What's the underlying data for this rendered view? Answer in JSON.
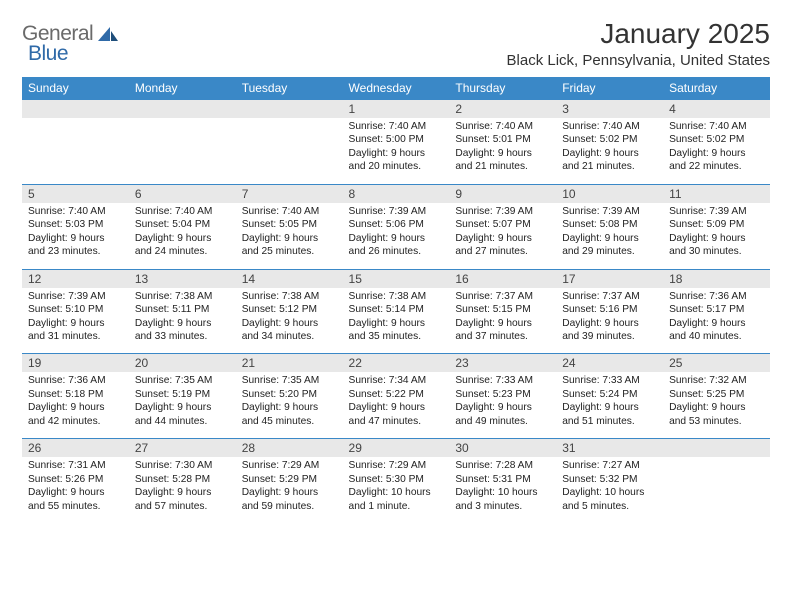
{
  "brand": {
    "name1": "General",
    "name2": "Blue"
  },
  "header": {
    "month_title": "January 2025",
    "location": "Black Lick, Pennsylvania, United States"
  },
  "colors": {
    "header_bg": "#3a88c7",
    "header_text": "#ffffff",
    "daynum_bg": "#e8e8e8",
    "border": "#3a88c7",
    "logo_gray": "#6a6a6a",
    "logo_blue": "#2f6aa8"
  },
  "weekdays": [
    "Sunday",
    "Monday",
    "Tuesday",
    "Wednesday",
    "Thursday",
    "Friday",
    "Saturday"
  ],
  "weeks": [
    [
      null,
      null,
      null,
      {
        "n": "1",
        "sunrise": "Sunrise: 7:40 AM",
        "sunset": "Sunset: 5:00 PM",
        "day1": "Daylight: 9 hours",
        "day2": "and 20 minutes."
      },
      {
        "n": "2",
        "sunrise": "Sunrise: 7:40 AM",
        "sunset": "Sunset: 5:01 PM",
        "day1": "Daylight: 9 hours",
        "day2": "and 21 minutes."
      },
      {
        "n": "3",
        "sunrise": "Sunrise: 7:40 AM",
        "sunset": "Sunset: 5:02 PM",
        "day1": "Daylight: 9 hours",
        "day2": "and 21 minutes."
      },
      {
        "n": "4",
        "sunrise": "Sunrise: 7:40 AM",
        "sunset": "Sunset: 5:02 PM",
        "day1": "Daylight: 9 hours",
        "day2": "and 22 minutes."
      }
    ],
    [
      {
        "n": "5",
        "sunrise": "Sunrise: 7:40 AM",
        "sunset": "Sunset: 5:03 PM",
        "day1": "Daylight: 9 hours",
        "day2": "and 23 minutes."
      },
      {
        "n": "6",
        "sunrise": "Sunrise: 7:40 AM",
        "sunset": "Sunset: 5:04 PM",
        "day1": "Daylight: 9 hours",
        "day2": "and 24 minutes."
      },
      {
        "n": "7",
        "sunrise": "Sunrise: 7:40 AM",
        "sunset": "Sunset: 5:05 PM",
        "day1": "Daylight: 9 hours",
        "day2": "and 25 minutes."
      },
      {
        "n": "8",
        "sunrise": "Sunrise: 7:39 AM",
        "sunset": "Sunset: 5:06 PM",
        "day1": "Daylight: 9 hours",
        "day2": "and 26 minutes."
      },
      {
        "n": "9",
        "sunrise": "Sunrise: 7:39 AM",
        "sunset": "Sunset: 5:07 PM",
        "day1": "Daylight: 9 hours",
        "day2": "and 27 minutes."
      },
      {
        "n": "10",
        "sunrise": "Sunrise: 7:39 AM",
        "sunset": "Sunset: 5:08 PM",
        "day1": "Daylight: 9 hours",
        "day2": "and 29 minutes."
      },
      {
        "n": "11",
        "sunrise": "Sunrise: 7:39 AM",
        "sunset": "Sunset: 5:09 PM",
        "day1": "Daylight: 9 hours",
        "day2": "and 30 minutes."
      }
    ],
    [
      {
        "n": "12",
        "sunrise": "Sunrise: 7:39 AM",
        "sunset": "Sunset: 5:10 PM",
        "day1": "Daylight: 9 hours",
        "day2": "and 31 minutes."
      },
      {
        "n": "13",
        "sunrise": "Sunrise: 7:38 AM",
        "sunset": "Sunset: 5:11 PM",
        "day1": "Daylight: 9 hours",
        "day2": "and 33 minutes."
      },
      {
        "n": "14",
        "sunrise": "Sunrise: 7:38 AM",
        "sunset": "Sunset: 5:12 PM",
        "day1": "Daylight: 9 hours",
        "day2": "and 34 minutes."
      },
      {
        "n": "15",
        "sunrise": "Sunrise: 7:38 AM",
        "sunset": "Sunset: 5:14 PM",
        "day1": "Daylight: 9 hours",
        "day2": "and 35 minutes."
      },
      {
        "n": "16",
        "sunrise": "Sunrise: 7:37 AM",
        "sunset": "Sunset: 5:15 PM",
        "day1": "Daylight: 9 hours",
        "day2": "and 37 minutes."
      },
      {
        "n": "17",
        "sunrise": "Sunrise: 7:37 AM",
        "sunset": "Sunset: 5:16 PM",
        "day1": "Daylight: 9 hours",
        "day2": "and 39 minutes."
      },
      {
        "n": "18",
        "sunrise": "Sunrise: 7:36 AM",
        "sunset": "Sunset: 5:17 PM",
        "day1": "Daylight: 9 hours",
        "day2": "and 40 minutes."
      }
    ],
    [
      {
        "n": "19",
        "sunrise": "Sunrise: 7:36 AM",
        "sunset": "Sunset: 5:18 PM",
        "day1": "Daylight: 9 hours",
        "day2": "and 42 minutes."
      },
      {
        "n": "20",
        "sunrise": "Sunrise: 7:35 AM",
        "sunset": "Sunset: 5:19 PM",
        "day1": "Daylight: 9 hours",
        "day2": "and 44 minutes."
      },
      {
        "n": "21",
        "sunrise": "Sunrise: 7:35 AM",
        "sunset": "Sunset: 5:20 PM",
        "day1": "Daylight: 9 hours",
        "day2": "and 45 minutes."
      },
      {
        "n": "22",
        "sunrise": "Sunrise: 7:34 AM",
        "sunset": "Sunset: 5:22 PM",
        "day1": "Daylight: 9 hours",
        "day2": "and 47 minutes."
      },
      {
        "n": "23",
        "sunrise": "Sunrise: 7:33 AM",
        "sunset": "Sunset: 5:23 PM",
        "day1": "Daylight: 9 hours",
        "day2": "and 49 minutes."
      },
      {
        "n": "24",
        "sunrise": "Sunrise: 7:33 AM",
        "sunset": "Sunset: 5:24 PM",
        "day1": "Daylight: 9 hours",
        "day2": "and 51 minutes."
      },
      {
        "n": "25",
        "sunrise": "Sunrise: 7:32 AM",
        "sunset": "Sunset: 5:25 PM",
        "day1": "Daylight: 9 hours",
        "day2": "and 53 minutes."
      }
    ],
    [
      {
        "n": "26",
        "sunrise": "Sunrise: 7:31 AM",
        "sunset": "Sunset: 5:26 PM",
        "day1": "Daylight: 9 hours",
        "day2": "and 55 minutes."
      },
      {
        "n": "27",
        "sunrise": "Sunrise: 7:30 AM",
        "sunset": "Sunset: 5:28 PM",
        "day1": "Daylight: 9 hours",
        "day2": "and 57 minutes."
      },
      {
        "n": "28",
        "sunrise": "Sunrise: 7:29 AM",
        "sunset": "Sunset: 5:29 PM",
        "day1": "Daylight: 9 hours",
        "day2": "and 59 minutes."
      },
      {
        "n": "29",
        "sunrise": "Sunrise: 7:29 AM",
        "sunset": "Sunset: 5:30 PM",
        "day1": "Daylight: 10 hours",
        "day2": "and 1 minute."
      },
      {
        "n": "30",
        "sunrise": "Sunrise: 7:28 AM",
        "sunset": "Sunset: 5:31 PM",
        "day1": "Daylight: 10 hours",
        "day2": "and 3 minutes."
      },
      {
        "n": "31",
        "sunrise": "Sunrise: 7:27 AM",
        "sunset": "Sunset: 5:32 PM",
        "day1": "Daylight: 10 hours",
        "day2": "and 5 minutes."
      },
      null
    ]
  ]
}
